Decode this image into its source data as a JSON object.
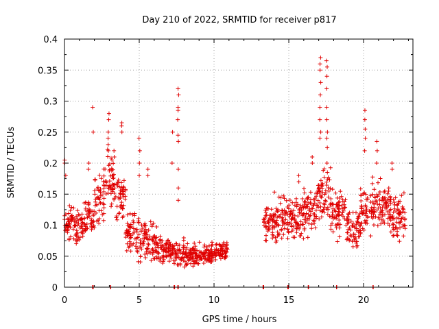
{
  "chart_data": {
    "type": "scatter",
    "title": "Day 210 of 2022, SRMTID for receiver p817",
    "xlabel": "GPS time / hours",
    "ylabel": "SRMTID / TECUs",
    "xlim": [
      0,
      23.3
    ],
    "ylim": [
      0,
      0.4
    ],
    "xticks": [
      0,
      5,
      10,
      15,
      20
    ],
    "xtick_labels": [
      "0",
      "5",
      "10",
      "15",
      "20"
    ],
    "yticks": [
      0,
      0.05,
      0.1,
      0.15,
      0.2,
      0.25,
      0.3,
      0.35,
      0.4
    ],
    "ytick_labels": [
      "0",
      "0.05",
      "0.1",
      "0.15",
      "0.2",
      "0.25",
      "0.3",
      "0.35",
      "0.4"
    ],
    "grid": true,
    "marker": "+",
    "color": "#e00000",
    "segments": [
      {
        "t0": 0.0,
        "t1": 0.6,
        "mean": 0.1,
        "spread": 0.022
      },
      {
        "t0": 0.6,
        "t1": 1.3,
        "mean": 0.095,
        "spread": 0.022
      },
      {
        "t0": 1.3,
        "t1": 2.0,
        "mean": 0.112,
        "spread": 0.026
      },
      {
        "t0": 2.0,
        "t1": 2.7,
        "mean": 0.145,
        "spread": 0.033
      },
      {
        "t0": 2.7,
        "t1": 3.4,
        "mean": 0.175,
        "spread": 0.035
      },
      {
        "t0": 3.4,
        "t1": 4.1,
        "mean": 0.145,
        "spread": 0.032
      },
      {
        "t0": 4.1,
        "t1": 4.8,
        "mean": 0.09,
        "spread": 0.03
      },
      {
        "t0": 4.8,
        "t1": 5.5,
        "mean": 0.08,
        "spread": 0.03
      },
      {
        "t0": 5.5,
        "t1": 6.2,
        "mean": 0.07,
        "spread": 0.025
      },
      {
        "t0": 6.2,
        "t1": 7.0,
        "mean": 0.062,
        "spread": 0.018
      },
      {
        "t0": 7.0,
        "t1": 8.0,
        "mean": 0.055,
        "spread": 0.018
      },
      {
        "t0": 8.0,
        "t1": 9.0,
        "mean": 0.052,
        "spread": 0.015
      },
      {
        "t0": 9.0,
        "t1": 10.0,
        "mean": 0.055,
        "spread": 0.015
      },
      {
        "t0": 10.0,
        "t1": 10.9,
        "mean": 0.058,
        "spread": 0.013
      },
      {
        "t0": 13.3,
        "t1": 14.0,
        "mean": 0.105,
        "spread": 0.03
      },
      {
        "t0": 14.0,
        "t1": 15.0,
        "mean": 0.11,
        "spread": 0.028
      },
      {
        "t0": 15.0,
        "t1": 16.0,
        "mean": 0.11,
        "spread": 0.025
      },
      {
        "t0": 16.0,
        "t1": 16.8,
        "mean": 0.12,
        "spread": 0.03
      },
      {
        "t0": 16.8,
        "t1": 17.8,
        "mean": 0.145,
        "spread": 0.035
      },
      {
        "t0": 17.8,
        "t1": 18.8,
        "mean": 0.12,
        "spread": 0.03
      },
      {
        "t0": 18.8,
        "t1": 19.8,
        "mean": 0.095,
        "spread": 0.025
      },
      {
        "t0": 19.8,
        "t1": 20.8,
        "mean": 0.13,
        "spread": 0.032
      },
      {
        "t0": 20.8,
        "t1": 21.8,
        "mean": 0.13,
        "spread": 0.03
      },
      {
        "t0": 21.8,
        "t1": 22.8,
        "mean": 0.115,
        "spread": 0.028
      }
    ],
    "spikes": [
      {
        "t": 0.05,
        "values": [
          0.205,
          0.2,
          0.18
        ]
      },
      {
        "t": 1.6,
        "values": [
          0.2,
          0.19
        ]
      },
      {
        "t": 1.9,
        "values": [
          0.29,
          0.25
        ]
      },
      {
        "t": 2.95,
        "values": [
          0.28,
          0.27,
          0.25,
          0.24,
          0.23,
          0.22
        ]
      },
      {
        "t": 3.3,
        "values": [
          0.22,
          0.21
        ]
      },
      {
        "t": 3.85,
        "values": [
          0.265,
          0.26,
          0.25
        ]
      },
      {
        "t": 5.0,
        "values": [
          0.24,
          0.22,
          0.2,
          0.18
        ]
      },
      {
        "t": 5.6,
        "values": [
          0.19,
          0.18
        ]
      },
      {
        "t": 7.2,
        "values": [
          0.25,
          0.2
        ]
      },
      {
        "t": 7.6,
        "values": [
          0.32,
          0.31,
          0.29,
          0.285,
          0.27,
          0.245,
          0.235,
          0.19,
          0.16,
          0.14
        ]
      },
      {
        "t": 15.7,
        "values": [
          0.18,
          0.17
        ]
      },
      {
        "t": 16.6,
        "values": [
          0.21,
          0.2
        ]
      },
      {
        "t": 17.1,
        "values": [
          0.37,
          0.36,
          0.35,
          0.33,
          0.31,
          0.29,
          0.27,
          0.25,
          0.24
        ]
      },
      {
        "t": 17.55,
        "values": [
          0.365,
          0.355,
          0.34,
          0.32,
          0.29,
          0.27,
          0.25,
          0.24,
          0.225,
          0.2
        ]
      },
      {
        "t": 20.1,
        "values": [
          0.285,
          0.27,
          0.255,
          0.24,
          0.22
        ]
      },
      {
        "t": 20.9,
        "values": [
          0.235,
          0.22,
          0.2
        ]
      },
      {
        "t": 21.9,
        "values": [
          0.2,
          0.19
        ]
      }
    ],
    "zero_points": [
      1.9,
      3.1,
      7.35,
      7.6,
      13.3,
      14.95,
      16.3,
      18.2,
      20.65
    ]
  }
}
